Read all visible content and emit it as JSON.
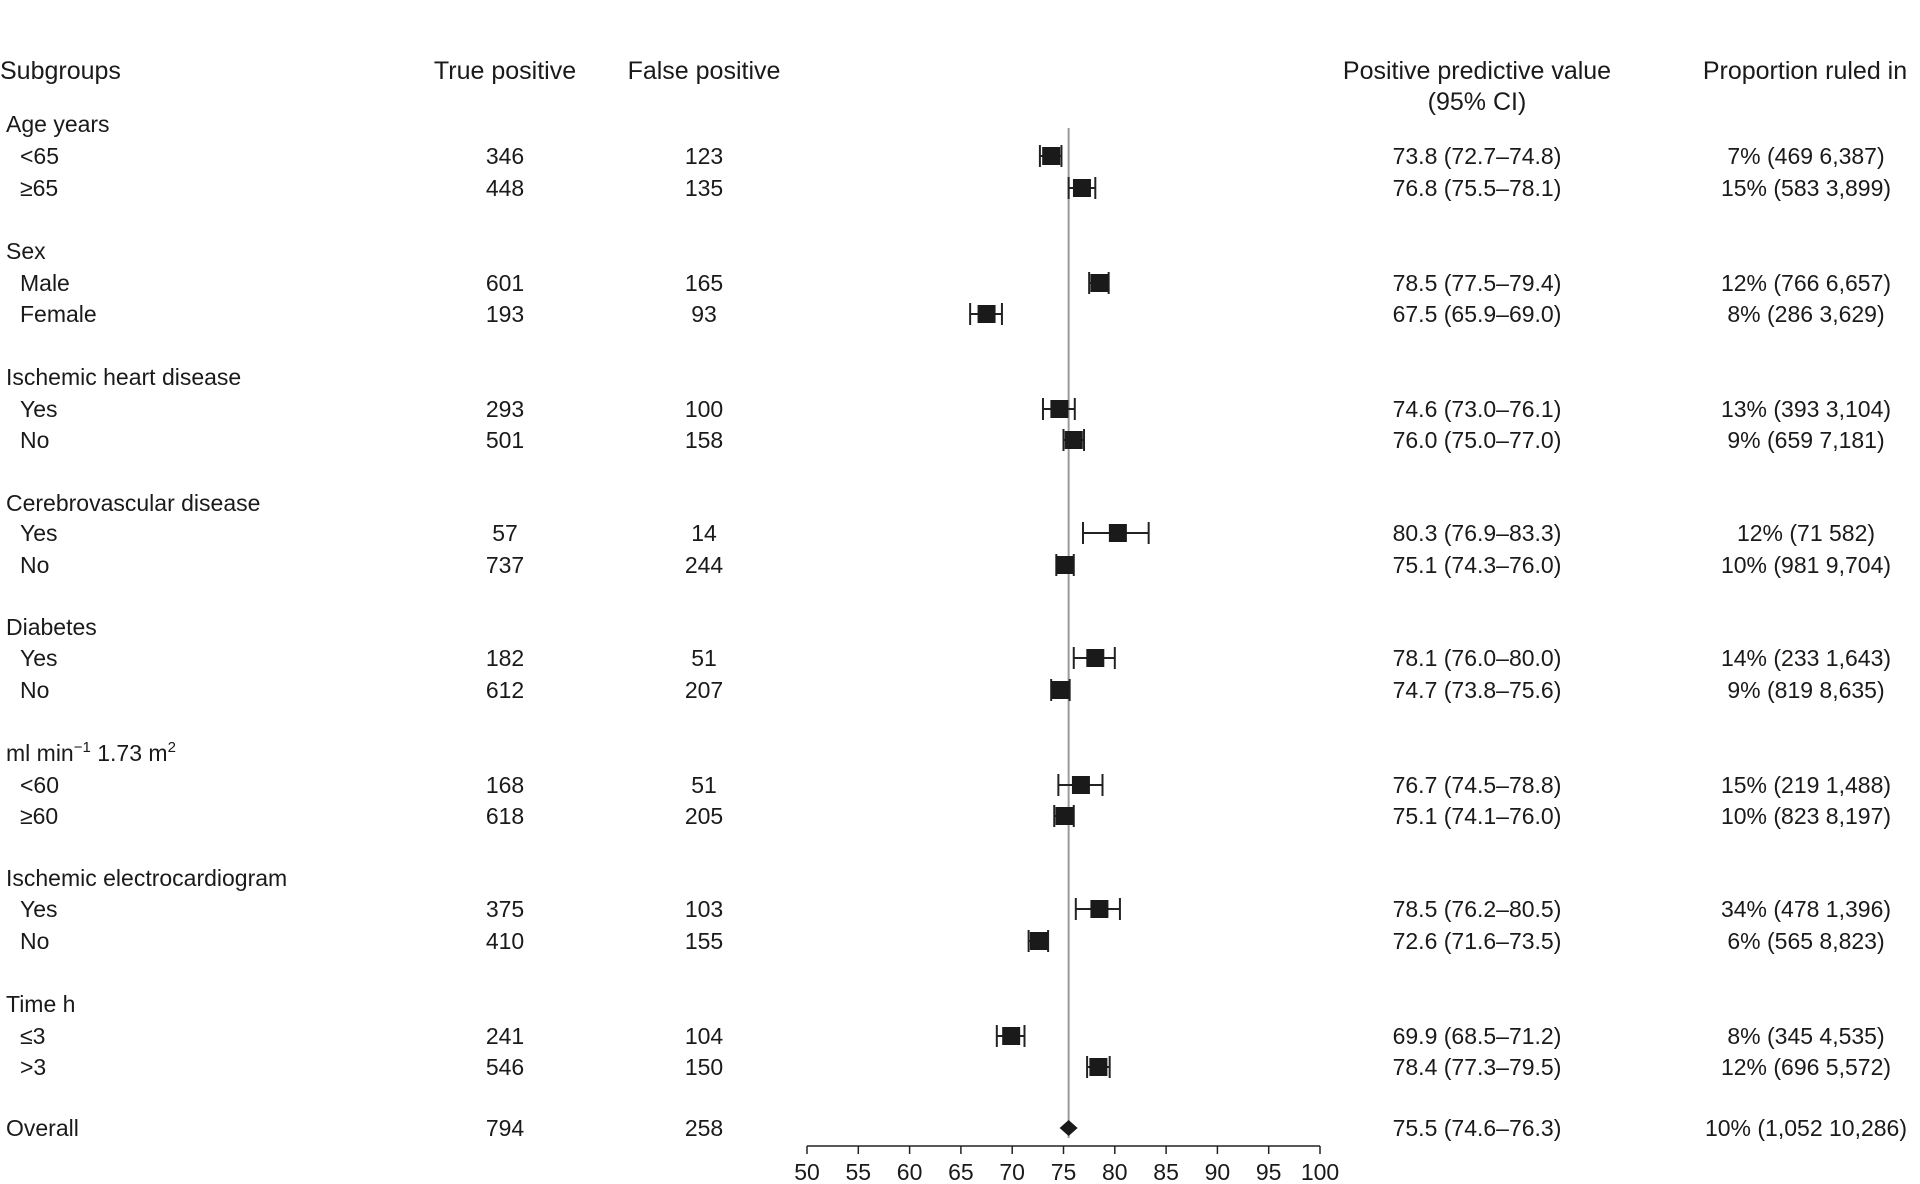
{
  "chart_data": {
    "type": "forest",
    "columns": {
      "subgroups": "Subgroups",
      "true_positive": "True positive",
      "false_positive": "False positive",
      "ppv_line1": "Positive predictive value",
      "ppv_line2": "(95% CI)",
      "proportion": "Proportion ruled in"
    },
    "xaxis": {
      "min": 50,
      "max": 100,
      "ticks": [
        50,
        55,
        60,
        65,
        70,
        75,
        80,
        85,
        90,
        95,
        100
      ],
      "reference": 75.5
    },
    "rows": [
      {
        "kind": "group",
        "label": "Age years"
      },
      {
        "kind": "item",
        "label": "<65",
        "tp": "346",
        "fp": "123",
        "est": 73.8,
        "lo": 72.7,
        "hi": 74.8,
        "ppv": "73.8 (72.7–74.8)",
        "prop": "7% (469  6,387)"
      },
      {
        "kind": "item",
        "label": "≥65",
        "tp": "448",
        "fp": "135",
        "est": 76.8,
        "lo": 75.5,
        "hi": 78.1,
        "ppv": "76.8 (75.5–78.1)",
        "prop": "15% (583  3,899)"
      },
      {
        "kind": "group",
        "label": "Sex"
      },
      {
        "kind": "item",
        "label": "Male",
        "tp": "601",
        "fp": "165",
        "est": 78.5,
        "lo": 77.5,
        "hi": 79.4,
        "ppv": "78.5 (77.5–79.4)",
        "prop": "12% (766  6,657)"
      },
      {
        "kind": "item",
        "label": "Female",
        "tp": "193",
        "fp": "93",
        "est": 67.5,
        "lo": 65.9,
        "hi": 69.0,
        "ppv": "67.5 (65.9–69.0)",
        "prop": "8% (286  3,629)"
      },
      {
        "kind": "group",
        "label": "Ischemic heart disease"
      },
      {
        "kind": "item",
        "label": "Yes",
        "tp": "293",
        "fp": "100",
        "est": 74.6,
        "lo": 73.0,
        "hi": 76.1,
        "ppv": "74.6 (73.0–76.1)",
        "prop": "13% (393  3,104)"
      },
      {
        "kind": "item",
        "label": "No",
        "tp": "501",
        "fp": "158",
        "est": 76.0,
        "lo": 75.0,
        "hi": 77.0,
        "ppv": "76.0 (75.0–77.0)",
        "prop": "9% (659  7,181)"
      },
      {
        "kind": "group",
        "label": "Cerebrovascular disease"
      },
      {
        "kind": "item",
        "label": "Yes",
        "tp": "57",
        "fp": "14",
        "est": 80.3,
        "lo": 76.9,
        "hi": 83.3,
        "ppv": "80.3 (76.9–83.3)",
        "prop": "12% (71  582)"
      },
      {
        "kind": "item",
        "label": "No",
        "tp": "737",
        "fp": "244",
        "est": 75.1,
        "lo": 74.3,
        "hi": 76.0,
        "ppv": "75.1 (74.3–76.0)",
        "prop": "10% (981  9,704)"
      },
      {
        "kind": "group",
        "label": "Diabetes"
      },
      {
        "kind": "item",
        "label": "Yes",
        "tp": "182",
        "fp": "51",
        "est": 78.1,
        "lo": 76.0,
        "hi": 80.0,
        "ppv": "78.1 (76.0–80.0)",
        "prop": "14% (233  1,643)"
      },
      {
        "kind": "item",
        "label": "No",
        "tp": "612",
        "fp": "207",
        "est": 74.7,
        "lo": 73.8,
        "hi": 75.6,
        "ppv": "74.7 (73.8–75.6)",
        "prop": "9% (819  8,635)"
      },
      {
        "kind": "group",
        "label": "ml min",
        "sup1": "−1",
        "mid": " 1.73 m",
        "sup2": "2"
      },
      {
        "kind": "item",
        "label": "<60",
        "tp": "168",
        "fp": "51",
        "est": 76.7,
        "lo": 74.5,
        "hi": 78.8,
        "ppv": "76.7 (74.5–78.8)",
        "prop": "15% (219  1,488)"
      },
      {
        "kind": "item",
        "label": "≥60",
        "tp": "618",
        "fp": "205",
        "est": 75.1,
        "lo": 74.1,
        "hi": 76.0,
        "ppv": "75.1 (74.1–76.0)",
        "prop": "10% (823  8,197)"
      },
      {
        "kind": "group",
        "label": "Ischemic electrocardiogram"
      },
      {
        "kind": "item",
        "label": "Yes",
        "tp": "375",
        "fp": "103",
        "est": 78.5,
        "lo": 76.2,
        "hi": 80.5,
        "ppv": "78.5 (76.2–80.5)",
        "prop": "34% (478  1,396)"
      },
      {
        "kind": "item",
        "label": "No",
        "tp": "410",
        "fp": "155",
        "est": 72.6,
        "lo": 71.6,
        "hi": 73.5,
        "ppv": "72.6 (71.6–73.5)",
        "prop": "6% (565  8,823)"
      },
      {
        "kind": "group",
        "label": "Time h"
      },
      {
        "kind": "item",
        "label": "≤3",
        "tp": "241",
        "fp": "104",
        "est": 69.9,
        "lo": 68.5,
        "hi": 71.2,
        "ppv": "69.9 (68.5–71.2)",
        "prop": "8% (345  4,535)"
      },
      {
        "kind": "item",
        "label": ">3",
        "tp": "546",
        "fp": "150",
        "est": 78.4,
        "lo": 77.3,
        "hi": 79.5,
        "ppv": "78.4 (77.3–79.5)",
        "prop": "12% (696  5,572)"
      },
      {
        "kind": "overall",
        "label": "Overall",
        "tp": "794",
        "fp": "258",
        "est": 75.5,
        "lo": 74.6,
        "hi": 76.3,
        "ppv": "75.5 (74.6–76.3)",
        "prop": "10% (1,052  10,286)"
      }
    ]
  }
}
